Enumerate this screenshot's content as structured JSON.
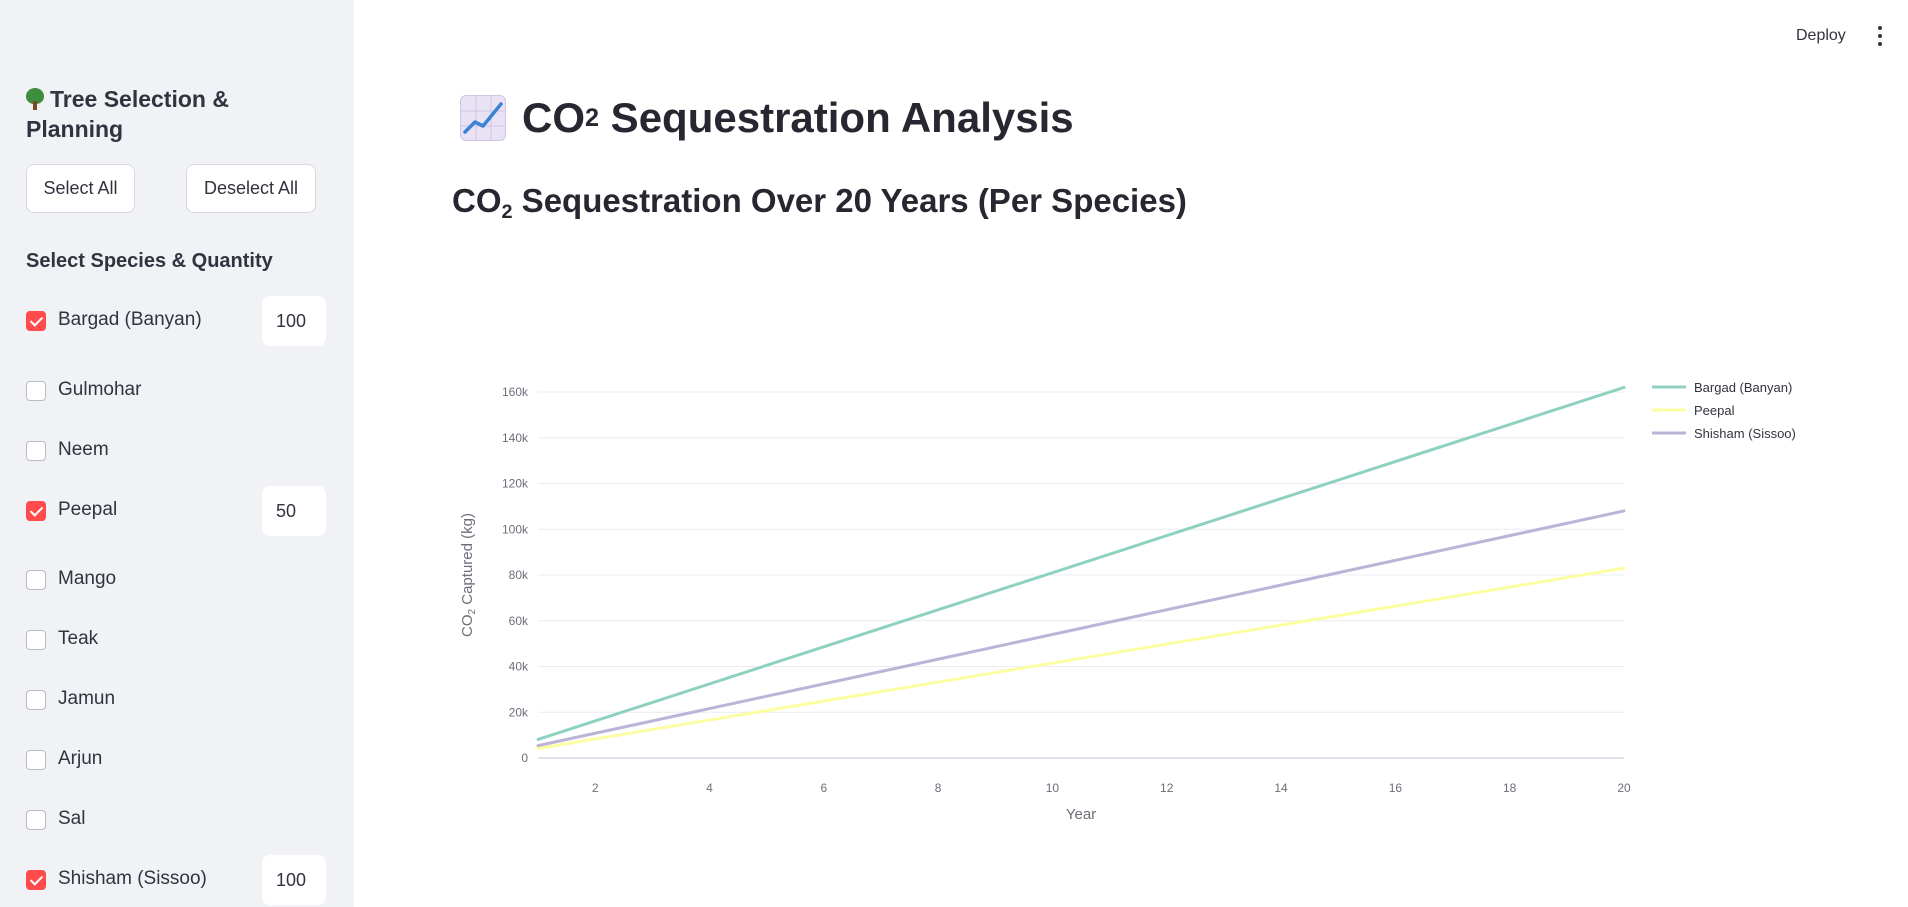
{
  "sidebar": {
    "title": "Tree Selection & Planning",
    "title_icon": "tree-icon",
    "select_all_label": "Select All",
    "deselect_all_label": "Deselect All",
    "subheading": "Select Species & Quantity",
    "species": [
      {
        "label": "Bargad (Banyan)",
        "checked": true,
        "quantity": "100"
      },
      {
        "label": "Gulmohar",
        "checked": false
      },
      {
        "label": "Neem",
        "checked": false
      },
      {
        "label": "Peepal",
        "checked": true,
        "quantity": "50"
      },
      {
        "label": "Mango",
        "checked": false
      },
      {
        "label": "Teak",
        "checked": false
      },
      {
        "label": "Jamun",
        "checked": false
      },
      {
        "label": "Arjun",
        "checked": false
      },
      {
        "label": "Sal",
        "checked": false
      },
      {
        "label": "Shisham (Sissoo)",
        "checked": true,
        "quantity": "100"
      }
    ],
    "checked_color": "#ff4b4b"
  },
  "header": {
    "deploy_label": "Deploy",
    "menu_icon": "kebab-menu-icon"
  },
  "main": {
    "title_icon": "chart-increasing-icon",
    "title_prefix": "CO",
    "title_sub": "2",
    "title_suffix": " Sequestration Analysis",
    "section_prefix": "CO",
    "section_sub": "2",
    "section_suffix": " Sequestration Over 20 Years (Per Species)"
  },
  "chart_data": {
    "type": "line",
    "title": "",
    "xlabel": "Year",
    "ylabel_prefix": "CO",
    "ylabel_sub": "2",
    "ylabel_suffix": " Captured (kg)",
    "xlim": [
      1,
      20
    ],
    "ylim": [
      0,
      160000
    ],
    "x_ticks": [
      2,
      4,
      6,
      8,
      10,
      12,
      14,
      16,
      18,
      20
    ],
    "y_ticks": [
      0,
      20000,
      40000,
      60000,
      80000,
      100000,
      120000,
      140000,
      160000
    ],
    "y_tick_labels": [
      "0",
      "20k",
      "40k",
      "60k",
      "80k",
      "100k",
      "120k",
      "140k",
      "160k"
    ],
    "grid": true,
    "legend_position": "top-right",
    "series": [
      {
        "name": "Bargad (Banyan)",
        "color": "#8ed1c1",
        "x": [
          1,
          20
        ],
        "y": [
          8100,
          162000
        ]
      },
      {
        "name": "Peepal",
        "color": "#fdfda2",
        "x": [
          1,
          20
        ],
        "y": [
          4150,
          83000
        ]
      },
      {
        "name": "Shisham (Sissoo)",
        "color": "#bbb3d8",
        "x": [
          1,
          20
        ],
        "y": [
          5400,
          108000
        ]
      }
    ]
  }
}
